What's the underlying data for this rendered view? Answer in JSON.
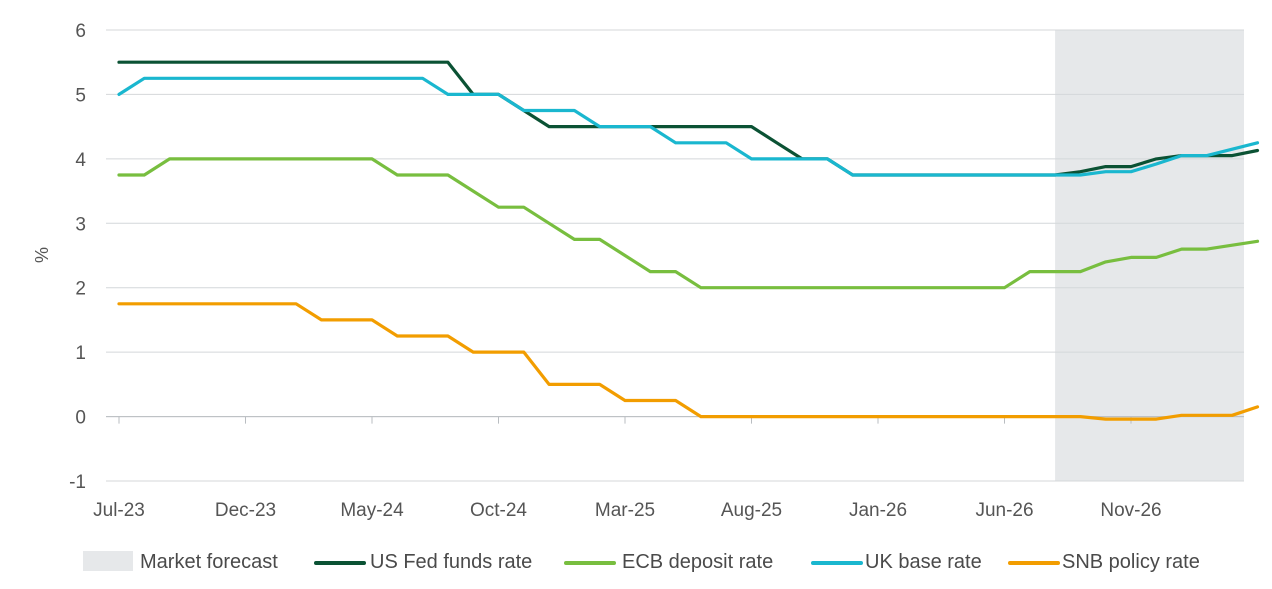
{
  "chart_data": {
    "type": "line",
    "title": "",
    "xlabel": "",
    "ylabel": "%",
    "ylim": [
      -1,
      6
    ],
    "yticks": [
      -1,
      0,
      1,
      2,
      3,
      4,
      5,
      6
    ],
    "x_tick_labels": [
      "Jul-23",
      "Dec-23",
      "May-24",
      "Oct-24",
      "Mar-25",
      "Aug-25",
      "Jan-26",
      "Jun-26",
      "Nov-26"
    ],
    "x_months": [
      "Jul-23",
      "Aug-23",
      "Sep-23",
      "Oct-23",
      "Nov-23",
      "Dec-23",
      "Jan-24",
      "Feb-24",
      "Mar-24",
      "Apr-24",
      "May-24",
      "Jun-24",
      "Jul-24",
      "Aug-24",
      "Sep-24",
      "Oct-24",
      "Nov-24",
      "Dec-24",
      "Jan-25",
      "Feb-25",
      "Mar-25",
      "Apr-25",
      "May-25",
      "Jun-25",
      "Jul-25",
      "Aug-25",
      "Sep-25",
      "Oct-25",
      "Nov-25",
      "Dec-25",
      "Jan-26",
      "Feb-26",
      "Mar-26",
      "Apr-26",
      "May-26",
      "Jun-26",
      "Jul-26",
      "Aug-26",
      "Sep-26",
      "Oct-26",
      "Nov-26",
      "Dec-26",
      "Jan-27",
      "Feb-27",
      "Mar-27",
      "Apr-27"
    ],
    "grid": true,
    "legend_position": "bottom",
    "forecast_region": {
      "label": "Market forecast",
      "start": "Aug-26",
      "end": "May-27",
      "color": "#e6e8ea"
    },
    "series": [
      {
        "name": "US Fed funds rate",
        "color": "#0b5234",
        "values": [
          5.5,
          5.5,
          5.5,
          5.5,
          5.5,
          5.5,
          5.5,
          5.5,
          5.5,
          5.5,
          5.5,
          5.5,
          5.5,
          5.5,
          5.0,
          5.0,
          4.75,
          4.5,
          4.5,
          4.5,
          4.5,
          4.5,
          4.5,
          4.5,
          4.5,
          4.5,
          4.25,
          4.0,
          4.0,
          3.75,
          3.75,
          3.75,
          3.75,
          3.75,
          3.75,
          3.75,
          3.75,
          3.75,
          3.8,
          3.88,
          3.88,
          4.0,
          4.05,
          4.05,
          4.05,
          4.13
        ]
      },
      {
        "name": "ECB deposit rate",
        "color": "#78be3f",
        "values": [
          3.75,
          3.75,
          4.0,
          4.0,
          4.0,
          4.0,
          4.0,
          4.0,
          4.0,
          4.0,
          4.0,
          3.75,
          3.75,
          3.75,
          3.5,
          3.25,
          3.25,
          3.0,
          2.75,
          2.75,
          2.5,
          2.25,
          2.25,
          2.0,
          2.0,
          2.0,
          2.0,
          2.0,
          2.0,
          2.0,
          2.0,
          2.0,
          2.0,
          2.0,
          2.0,
          2.0,
          2.25,
          2.25,
          2.25,
          2.4,
          2.47,
          2.47,
          2.6,
          2.6,
          2.66,
          2.72
        ]
      },
      {
        "name": "UK base rate",
        "color": "#1ab7cf",
        "values": [
          5.0,
          5.25,
          5.25,
          5.25,
          5.25,
          5.25,
          5.25,
          5.25,
          5.25,
          5.25,
          5.25,
          5.25,
          5.25,
          5.0,
          5.0,
          5.0,
          4.75,
          4.75,
          4.75,
          4.5,
          4.5,
          4.5,
          4.25,
          4.25,
          4.25,
          4.0,
          4.0,
          4.0,
          4.0,
          3.75,
          3.75,
          3.75,
          3.75,
          3.75,
          3.75,
          3.75,
          3.75,
          3.75,
          3.75,
          3.8,
          3.8,
          3.92,
          4.05,
          4.05,
          4.15,
          4.25
        ]
      },
      {
        "name": "SNB policy rate",
        "color": "#f29d00",
        "values": [
          1.75,
          1.75,
          1.75,
          1.75,
          1.75,
          1.75,
          1.75,
          1.75,
          1.5,
          1.5,
          1.5,
          1.25,
          1.25,
          1.25,
          1.0,
          1.0,
          1.0,
          0.5,
          0.5,
          0.5,
          0.25,
          0.25,
          0.25,
          0.0,
          0.0,
          0.0,
          0.0,
          0.0,
          0.0,
          0.0,
          0.0,
          0.0,
          0.0,
          0.0,
          0.0,
          0.0,
          0.0,
          0.0,
          0.0,
          -0.04,
          -0.04,
          -0.04,
          0.02,
          0.02,
          0.02,
          0.15
        ]
      }
    ]
  }
}
